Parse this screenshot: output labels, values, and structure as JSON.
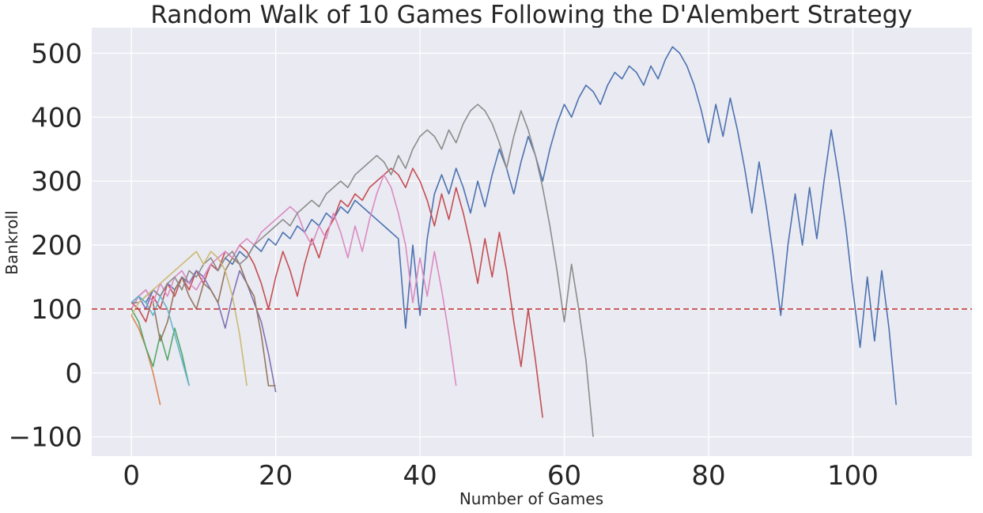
{
  "chart_data": {
    "type": "line",
    "title": "Random Walk of 10 Games Following the D'Alembert Strategy",
    "xlabel": "Number of Games",
    "ylabel": "Bankroll",
    "xlim": [
      -5.5,
      116.5
    ],
    "ylim": [
      -130,
      540
    ],
    "xticks": [
      0,
      20,
      40,
      60,
      80,
      100
    ],
    "yticks": [
      -100,
      0,
      100,
      200,
      300,
      400,
      500
    ],
    "xtick_labels": [
      "0",
      "20",
      "40",
      "60",
      "80",
      "100"
    ],
    "ytick_labels": [
      "−100",
      "0",
      "100",
      "200",
      "300",
      "400",
      "500"
    ],
    "grid": true,
    "legend": "none",
    "background": "#EAEAF2",
    "reference_line": {
      "y": 100,
      "color": "#C03D3E",
      "style": "dashed"
    },
    "series": [
      {
        "color": "#4C72B0",
        "y": [
          110,
          120,
          110,
          130,
          120,
          140,
          130,
          150,
          140,
          160,
          150,
          170,
          160,
          180,
          170,
          190,
          180,
          200,
          190,
          210,
          200,
          220,
          210,
          230,
          220,
          240,
          230,
          250,
          240,
          260,
          250,
          270,
          260,
          250,
          240,
          230,
          220,
          210,
          70,
          200,
          90,
          210,
          280,
          310,
          280,
          320,
          290,
          250,
          300,
          260,
          310,
          350,
          320,
          280,
          330,
          370,
          340,
          300,
          350,
          390,
          420,
          400,
          430,
          450,
          440,
          420,
          450,
          470,
          460,
          480,
          470,
          450,
          480,
          460,
          490,
          510,
          500,
          480,
          450,
          410,
          360,
          420,
          370,
          430,
          380,
          320,
          250,
          330,
          260,
          180,
          90,
          200,
          280,
          200,
          290,
          210,
          300,
          380,
          310,
          230,
          130,
          40,
          150,
          50,
          160,
          70,
          -50
        ]
      },
      {
        "color": "#DD8452",
        "y": [
          90,
          70,
          40,
          0,
          -50
        ]
      },
      {
        "color": "#55A868",
        "y": [
          100,
          80,
          40,
          10,
          60,
          20,
          70,
          30,
          -20
        ]
      },
      {
        "color": "#C44E52",
        "y": [
          110,
          100,
          80,
          120,
          100,
          140,
          120,
          150,
          130,
          160,
          140,
          170,
          160,
          190,
          180,
          200,
          190,
          170,
          140,
          100,
          150,
          190,
          160,
          120,
          170,
          210,
          180,
          220,
          240,
          270,
          260,
          280,
          270,
          290,
          300,
          310,
          320,
          310,
          290,
          320,
          300,
          270,
          230,
          280,
          240,
          290,
          250,
          200,
          140,
          210,
          150,
          220,
          160,
          80,
          10,
          100,
          20,
          -70
        ]
      },
      {
        "color": "#8172B2",
        "y": [
          110,
          120,
          100,
          130,
          120,
          140,
          130,
          150,
          140,
          160,
          150,
          130,
          110,
          70,
          120,
          160,
          140,
          110,
          80,
          30,
          -30
        ]
      },
      {
        "color": "#937860",
        "y": [
          100,
          120,
          130,
          110,
          50,
          80,
          130,
          150,
          120,
          100,
          140,
          130,
          110,
          160,
          180,
          170,
          140,
          120,
          60,
          -20,
          -20
        ]
      },
      {
        "color": "#DA8BC3",
        "y": [
          100,
          120,
          130,
          110,
          140,
          120,
          150,
          160,
          140,
          130,
          150,
          170,
          180,
          190,
          180,
          200,
          210,
          200,
          220,
          230,
          240,
          250,
          260,
          250,
          220,
          200,
          230,
          210,
          250,
          220,
          180,
          230,
          190,
          240,
          280,
          310,
          290,
          250,
          200,
          110,
          180,
          120,
          190,
          130,
          60,
          -20
        ]
      },
      {
        "color": "#8C8C8C",
        "y": [
          110,
          110,
          120,
          130,
          120,
          140,
          150,
          130,
          160,
          150,
          170,
          180,
          160,
          180,
          190,
          170,
          180,
          200,
          210,
          220,
          230,
          240,
          230,
          250,
          260,
          270,
          260,
          280,
          290,
          300,
          290,
          310,
          320,
          330,
          340,
          330,
          310,
          340,
          320,
          350,
          370,
          380,
          370,
          350,
          380,
          360,
          390,
          410,
          420,
          410,
          390,
          360,
          320,
          370,
          410,
          380,
          340,
          290,
          230,
          160,
          80,
          170,
          100,
          20,
          -100
        ]
      },
      {
        "color": "#CCB974",
        "y": [
          90,
          110,
          120,
          130,
          140,
          150,
          160,
          170,
          180,
          190,
          170,
          190,
          180,
          160,
          120,
          60,
          -20
        ]
      },
      {
        "color": "#64B5CD",
        "y": [
          110,
          120,
          110,
          90,
          120,
          100,
          60,
          20,
          -20
        ]
      }
    ]
  }
}
